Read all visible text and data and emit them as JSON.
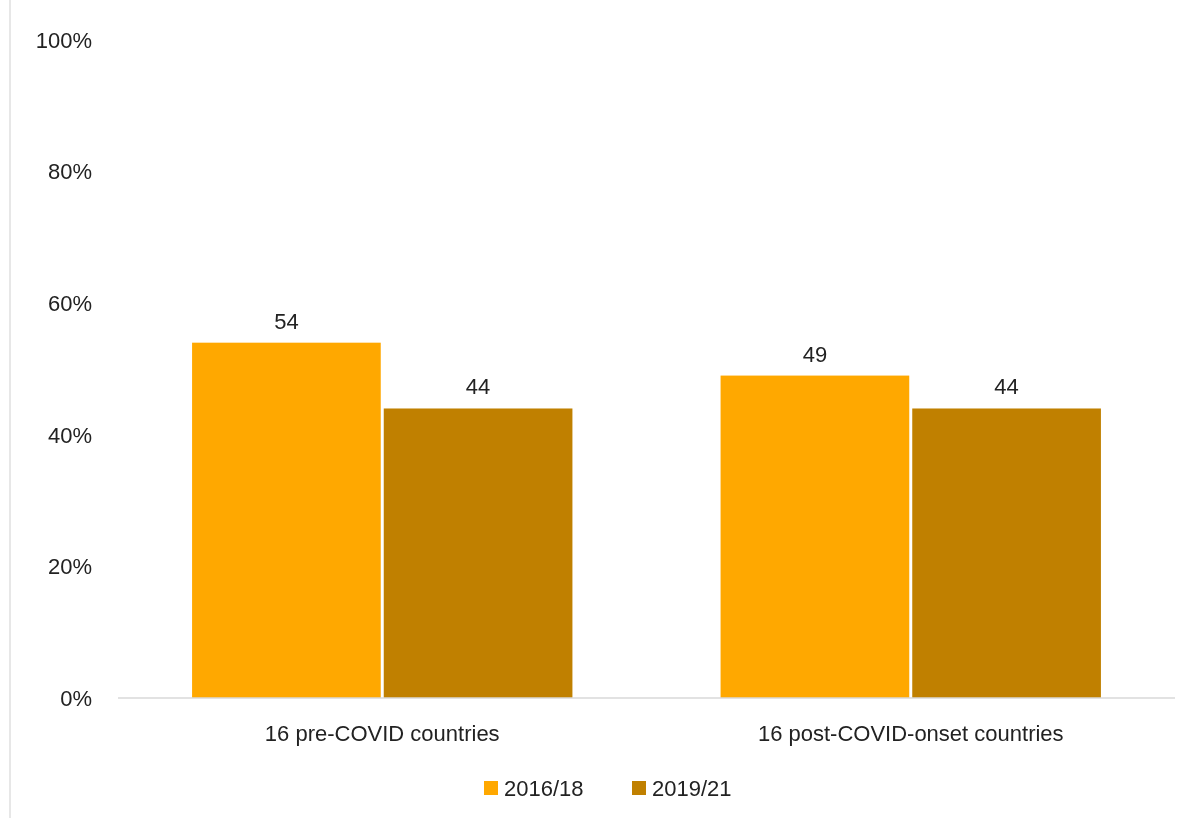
{
  "chart_data": {
    "type": "bar",
    "categories": [
      "16 pre-COVID countries",
      "16 post-COVID-onset countries"
    ],
    "series": [
      {
        "name": "2016/18",
        "color": "#ffa800",
        "values": [
          54,
          49
        ]
      },
      {
        "name": "2019/21",
        "color": "#c08000",
        "values": [
          44,
          44
        ]
      }
    ],
    "ylim": [
      0,
      100
    ],
    "yticks": [
      {
        "value": 0,
        "label": "0%"
      },
      {
        "value": 20,
        "label": "20%"
      },
      {
        "value": 40,
        "label": "40%"
      },
      {
        "value": 60,
        "label": "60%"
      },
      {
        "value": 80,
        "label": "80%"
      },
      {
        "value": 100,
        "label": "100%"
      }
    ],
    "data_labels": true,
    "grid": false,
    "legend": "bottom"
  }
}
